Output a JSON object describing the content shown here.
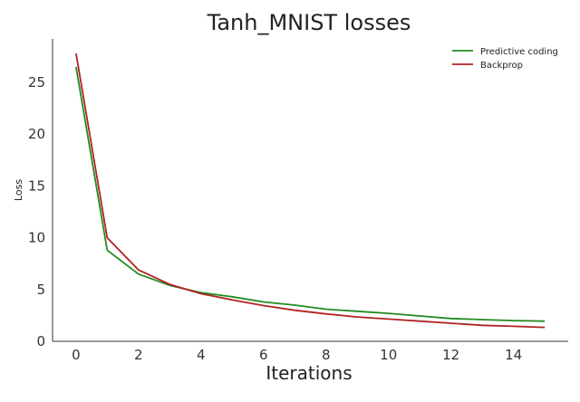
{
  "chart_data": {
    "type": "line",
    "title": "Tanh_MNIST losses",
    "xlabel": "Iterations",
    "ylabel": "Loss",
    "xlim": [
      -0.75,
      15.75
    ],
    "ylim": [
      0,
      29.2
    ],
    "xticks": [
      0,
      2,
      4,
      6,
      8,
      10,
      12,
      14
    ],
    "yticks": [
      0,
      5,
      10,
      15,
      20,
      25
    ],
    "grid": false,
    "legend_position": "top-right",
    "x": [
      0,
      1,
      2,
      3,
      4,
      5,
      6,
      7,
      8,
      9,
      10,
      11,
      12,
      13,
      14,
      15
    ],
    "series": [
      {
        "name": "Predictive coding",
        "color": "#228B22",
        "values": [
          26.5,
          8.8,
          6.5,
          5.4,
          4.7,
          4.3,
          3.8,
          3.5,
          3.1,
          2.9,
          2.7,
          2.45,
          2.2,
          2.1,
          2.0,
          1.95
        ]
      },
      {
        "name": "Backprop",
        "color": "#B22222",
        "values": [
          27.8,
          10.0,
          6.9,
          5.5,
          4.6,
          4.0,
          3.45,
          3.0,
          2.65,
          2.35,
          2.15,
          1.95,
          1.75,
          1.55,
          1.45,
          1.35
        ]
      }
    ]
  }
}
